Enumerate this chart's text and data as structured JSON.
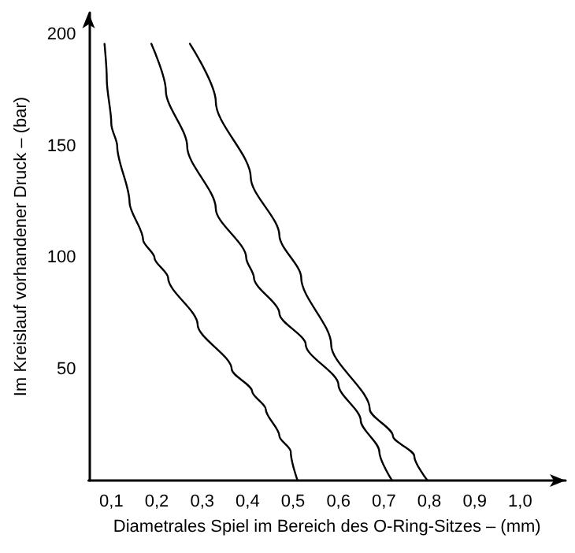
{
  "chart_data": {
    "type": "line",
    "xlabel": "Diametrales Spiel im Bereich des O-Ring-Sitzes – (mm)",
    "ylabel": "Im Kreislauf vorhandener Druck – (bar)",
    "xlim": [
      0.05,
      1.1
    ],
    "ylim": [
      0,
      210
    ],
    "xticks": [
      {
        "value": 0.1,
        "label": "0,1"
      },
      {
        "value": 0.2,
        "label": "0,2"
      },
      {
        "value": 0.3,
        "label": "0,3"
      },
      {
        "value": 0.4,
        "label": "0,4"
      },
      {
        "value": 0.5,
        "label": "0,5"
      },
      {
        "value": 0.6,
        "label": "0,6"
      },
      {
        "value": 0.7,
        "label": "0,7"
      },
      {
        "value": 0.8,
        "label": "0,8"
      },
      {
        "value": 0.9,
        "label": "0,9"
      },
      {
        "value": 1.0,
        "label": "1,0"
      }
    ],
    "yticks": [
      50,
      100,
      150,
      200
    ],
    "grid": false,
    "marker": "none",
    "line_style": "solid",
    "series": [
      {
        "color": "#000000",
        "x": [
          0.085,
          0.09,
          0.1,
          0.113,
          0.14,
          0.17,
          0.195,
          0.225,
          0.29,
          0.365,
          0.41,
          0.44,
          0.47,
          0.495,
          0.51
        ],
        "values": [
          196,
          180,
          160,
          150,
          125,
          108,
          100,
          91,
          70,
          50,
          40,
          32,
          20,
          13,
          0
        ]
      },
      {
        "color": "#000000",
        "x": [
          0.188,
          0.22,
          0.267,
          0.33,
          0.397,
          0.414,
          0.47,
          0.528,
          0.6,
          0.649,
          0.69,
          0.718
        ],
        "values": [
          196,
          175,
          150,
          122,
          100,
          91,
          75,
          61,
          43,
          27,
          13,
          0
        ]
      },
      {
        "color": "#000000",
        "x": [
          0.273,
          0.33,
          0.407,
          0.47,
          0.518,
          0.584,
          0.669,
          0.72,
          0.767,
          0.796
        ],
        "values": [
          196,
          170,
          136,
          110,
          91,
          61,
          32,
          20,
          11,
          0
        ]
      }
    ]
  }
}
